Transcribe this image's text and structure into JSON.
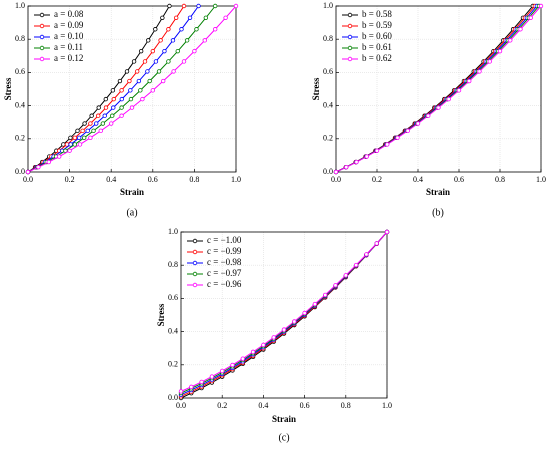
{
  "chart_data": [
    {
      "type": "line",
      "panel": "(a)",
      "xlabel": "Strain",
      "ylabel": "Stress",
      "grid": true,
      "legend": "upper left",
      "xlim": [
        0,
        1
      ],
      "ylim": [
        0,
        1
      ],
      "xticks": [
        {
          "value": 0,
          "label": "0.0"
        },
        {
          "value": 0.2,
          "label": "0.2"
        },
        {
          "value": 0.4,
          "label": "0.4"
        },
        {
          "value": 0.6,
          "label": "0.6"
        },
        {
          "value": 0.8,
          "label": "0.8"
        },
        {
          "value": 1,
          "label": "1.0"
        }
      ],
      "yticks": [
        {
          "value": 0,
          "label": "0.0"
        },
        {
          "value": 0.2,
          "label": "0.2"
        },
        {
          "value": 0.4,
          "label": "0.4"
        },
        {
          "value": 0.6,
          "label": "0.6"
        },
        {
          "value": 0.8,
          "label": "0.8"
        },
        {
          "value": 1,
          "label": "1.0"
        }
      ],
      "series": [
        {
          "name": "a = 0.08",
          "color": "#000000",
          "x": [
            0,
            0.034,
            0.068,
            0.102,
            0.136,
            0.17,
            0.204,
            0.238,
            0.272,
            0.306,
            0.34,
            0.374,
            0.408,
            0.442,
            0.476,
            0.51,
            0.544,
            0.578,
            0.612,
            0.646,
            0.68
          ],
          "values": [
            0,
            0.029,
            0.06,
            0.093,
            0.128,
            0.166,
            0.206,
            0.248,
            0.292,
            0.339,
            0.388,
            0.439,
            0.492,
            0.548,
            0.606,
            0.666,
            0.728,
            0.793,
            0.86,
            0.929,
            1
          ]
        },
        {
          "name": "a = 0.09",
          "color": "#ff0000",
          "x": [
            0,
            0.0375,
            0.075,
            0.1125,
            0.15,
            0.1875,
            0.225,
            0.2625,
            0.3,
            0.3375,
            0.375,
            0.4125,
            0.45,
            0.4875,
            0.525,
            0.5625,
            0.6,
            0.6375,
            0.675,
            0.7125,
            0.75
          ],
          "values": [
            0,
            0.029,
            0.06,
            0.093,
            0.128,
            0.166,
            0.206,
            0.248,
            0.292,
            0.339,
            0.388,
            0.439,
            0.492,
            0.548,
            0.606,
            0.666,
            0.728,
            0.793,
            0.86,
            0.929,
            1
          ]
        },
        {
          "name": "a = 0.10",
          "color": "#0000ff",
          "x": [
            0,
            0.041,
            0.082,
            0.123,
            0.164,
            0.205,
            0.246,
            0.287,
            0.328,
            0.369,
            0.41,
            0.451,
            0.492,
            0.533,
            0.574,
            0.615,
            0.656,
            0.697,
            0.738,
            0.779,
            0.82
          ],
          "values": [
            0,
            0.029,
            0.06,
            0.093,
            0.128,
            0.166,
            0.206,
            0.248,
            0.292,
            0.339,
            0.388,
            0.439,
            0.492,
            0.548,
            0.606,
            0.666,
            0.728,
            0.793,
            0.86,
            0.929,
            1
          ]
        },
        {
          "name": "a = 0.11",
          "color": "#008000",
          "x": [
            0,
            0.045,
            0.09,
            0.135,
            0.18,
            0.225,
            0.27,
            0.315,
            0.36,
            0.405,
            0.45,
            0.495,
            0.54,
            0.585,
            0.63,
            0.675,
            0.72,
            0.765,
            0.81,
            0.855,
            0.9
          ],
          "values": [
            0,
            0.029,
            0.06,
            0.093,
            0.128,
            0.166,
            0.206,
            0.248,
            0.292,
            0.339,
            0.388,
            0.439,
            0.492,
            0.548,
            0.606,
            0.666,
            0.728,
            0.793,
            0.86,
            0.929,
            1
          ]
        },
        {
          "name": "a = 0.12",
          "color": "#ff00ff",
          "x": [
            0,
            0.05,
            0.1,
            0.15,
            0.2,
            0.25,
            0.3,
            0.35,
            0.4,
            0.45,
            0.5,
            0.55,
            0.6,
            0.65,
            0.7,
            0.75,
            0.8,
            0.85,
            0.9,
            0.95,
            1
          ],
          "values": [
            0,
            0.029,
            0.06,
            0.093,
            0.128,
            0.166,
            0.206,
            0.248,
            0.292,
            0.339,
            0.388,
            0.439,
            0.492,
            0.548,
            0.606,
            0.666,
            0.728,
            0.793,
            0.86,
            0.929,
            1
          ]
        }
      ]
    },
    {
      "type": "line",
      "panel": "(b)",
      "xlabel": "Strain",
      "ylabel": "Stress",
      "grid": true,
      "legend": "upper left",
      "xlim": [
        0,
        1
      ],
      "ylim": [
        0,
        1
      ],
      "xticks": [
        {
          "value": 0,
          "label": "0.0"
        },
        {
          "value": 0.2,
          "label": "0.2"
        },
        {
          "value": 0.4,
          "label": "0.4"
        },
        {
          "value": 0.6,
          "label": "0.6"
        },
        {
          "value": 0.8,
          "label": "0.8"
        },
        {
          "value": 1,
          "label": "1.0"
        }
      ],
      "yticks": [
        {
          "value": 0,
          "label": "0.0"
        },
        {
          "value": 0.2,
          "label": "0.2"
        },
        {
          "value": 0.4,
          "label": "0.4"
        },
        {
          "value": 0.6,
          "label": "0.6"
        },
        {
          "value": 0.8,
          "label": "0.8"
        },
        {
          "value": 1,
          "label": "1.0"
        }
      ],
      "series": [
        {
          "name": "b = 0.58",
          "color": "#000000",
          "x": [
            0,
            0.048,
            0.096,
            0.144,
            0.192,
            0.24,
            0.288,
            0.336,
            0.384,
            0.432,
            0.48,
            0.528,
            0.576,
            0.624,
            0.672,
            0.72,
            0.768,
            0.816,
            0.864,
            0.912,
            0.96
          ],
          "values": [
            0,
            0.029,
            0.06,
            0.093,
            0.128,
            0.166,
            0.206,
            0.248,
            0.292,
            0.339,
            0.388,
            0.439,
            0.492,
            0.548,
            0.606,
            0.666,
            0.728,
            0.793,
            0.86,
            0.929,
            1
          ]
        },
        {
          "name": "b = 0.59",
          "color": "#ff0000",
          "x": [
            0,
            0.0485,
            0.097,
            0.1455,
            0.194,
            0.2425,
            0.291,
            0.3395,
            0.388,
            0.4365,
            0.485,
            0.5335,
            0.582,
            0.6305,
            0.679,
            0.7275,
            0.776,
            0.8245,
            0.873,
            0.9215,
            0.97
          ],
          "values": [
            0,
            0.029,
            0.06,
            0.093,
            0.128,
            0.166,
            0.206,
            0.248,
            0.292,
            0.339,
            0.388,
            0.439,
            0.492,
            0.548,
            0.606,
            0.666,
            0.728,
            0.793,
            0.86,
            0.929,
            1
          ]
        },
        {
          "name": "b = 0.60",
          "color": "#0000ff",
          "x": [
            0,
            0.049,
            0.098,
            0.147,
            0.196,
            0.245,
            0.294,
            0.343,
            0.392,
            0.441,
            0.49,
            0.539,
            0.588,
            0.637,
            0.686,
            0.735,
            0.784,
            0.833,
            0.882,
            0.931,
            0.98
          ],
          "values": [
            0,
            0.029,
            0.06,
            0.093,
            0.128,
            0.166,
            0.206,
            0.248,
            0.292,
            0.339,
            0.388,
            0.439,
            0.492,
            0.548,
            0.606,
            0.666,
            0.728,
            0.793,
            0.86,
            0.929,
            1
          ]
        },
        {
          "name": "b = 0.61",
          "color": "#008000",
          "x": [
            0,
            0.0495,
            0.099,
            0.1485,
            0.198,
            0.2475,
            0.297,
            0.3465,
            0.396,
            0.4455,
            0.495,
            0.5445,
            0.594,
            0.6435,
            0.693,
            0.7425,
            0.792,
            0.8415,
            0.891,
            0.9405,
            0.99
          ],
          "values": [
            0,
            0.029,
            0.06,
            0.093,
            0.128,
            0.166,
            0.206,
            0.248,
            0.292,
            0.339,
            0.388,
            0.439,
            0.492,
            0.548,
            0.606,
            0.666,
            0.728,
            0.793,
            0.86,
            0.929,
            1
          ]
        },
        {
          "name": "b = 0.62",
          "color": "#ff00ff",
          "x": [
            0,
            0.05,
            0.1,
            0.15,
            0.2,
            0.25,
            0.3,
            0.35,
            0.4,
            0.45,
            0.5,
            0.55,
            0.6,
            0.65,
            0.7,
            0.75,
            0.8,
            0.85,
            0.9,
            0.95,
            1
          ],
          "values": [
            0,
            0.029,
            0.06,
            0.093,
            0.128,
            0.166,
            0.206,
            0.248,
            0.292,
            0.339,
            0.388,
            0.439,
            0.492,
            0.548,
            0.606,
            0.666,
            0.728,
            0.793,
            0.86,
            0.929,
            1
          ]
        }
      ]
    },
    {
      "type": "line",
      "panel": "(c)",
      "xlabel": "Strain",
      "ylabel": "Stress",
      "grid": true,
      "legend": "upper left",
      "xlim": [
        0,
        1
      ],
      "ylim": [
        0,
        1
      ],
      "xticks": [
        {
          "value": 0,
          "label": "0.0"
        },
        {
          "value": 0.2,
          "label": "0.2"
        },
        {
          "value": 0.4,
          "label": "0.4"
        },
        {
          "value": 0.6,
          "label": "0.6"
        },
        {
          "value": 0.8,
          "label": "0.8"
        },
        {
          "value": 1,
          "label": "1.0"
        }
      ],
      "yticks": [
        {
          "value": 0,
          "label": "0.0"
        },
        {
          "value": 0.2,
          "label": "0.2"
        },
        {
          "value": 0.4,
          "label": "0.4"
        },
        {
          "value": 0.6,
          "label": "0.6"
        },
        {
          "value": 0.8,
          "label": "0.8"
        },
        {
          "value": 1,
          "label": "1.0"
        }
      ],
      "x": [
        0,
        0.05,
        0.1,
        0.15,
        0.2,
        0.25,
        0.3,
        0.35,
        0.4,
        0.45,
        0.5,
        0.55,
        0.6,
        0.65,
        0.7,
        0.75,
        0.8,
        0.85,
        0.9,
        0.95,
        1
      ],
      "series": [
        {
          "name": "c = −1.00",
          "color": "#000000",
          "values": [
            0,
            0.029,
            0.06,
            0.093,
            0.128,
            0.166,
            0.206,
            0.248,
            0.292,
            0.339,
            0.388,
            0.439,
            0.492,
            0.548,
            0.606,
            0.666,
            0.728,
            0.793,
            0.86,
            0.929,
            1
          ]
        },
        {
          "name": "c = −0.99",
          "color": "#ff0000",
          "values": [
            0.01,
            0.038,
            0.069,
            0.102,
            0.137,
            0.174,
            0.213,
            0.255,
            0.299,
            0.345,
            0.394,
            0.444,
            0.497,
            0.552,
            0.609,
            0.669,
            0.731,
            0.795,
            0.861,
            0.929,
            1
          ]
        },
        {
          "name": "c = −0.98",
          "color": "#0000ff",
          "values": [
            0.02,
            0.048,
            0.078,
            0.111,
            0.145,
            0.182,
            0.221,
            0.263,
            0.306,
            0.352,
            0.4,
            0.45,
            0.502,
            0.557,
            0.613,
            0.672,
            0.733,
            0.797,
            0.862,
            0.93,
            1
          ]
        },
        {
          "name": "c = −0.97",
          "color": "#008000",
          "values": [
            0.03,
            0.058,
            0.088,
            0.12,
            0.154,
            0.191,
            0.229,
            0.27,
            0.313,
            0.358,
            0.406,
            0.455,
            0.507,
            0.561,
            0.617,
            0.676,
            0.736,
            0.799,
            0.864,
            0.931,
            1
          ]
        },
        {
          "name": "c = −0.96",
          "color": "#ff00ff",
          "values": [
            0.04,
            0.067,
            0.097,
            0.129,
            0.163,
            0.199,
            0.237,
            0.278,
            0.32,
            0.365,
            0.412,
            0.461,
            0.512,
            0.566,
            0.621,
            0.679,
            0.739,
            0.801,
            0.865,
            0.931,
            1
          ]
        }
      ]
    }
  ]
}
